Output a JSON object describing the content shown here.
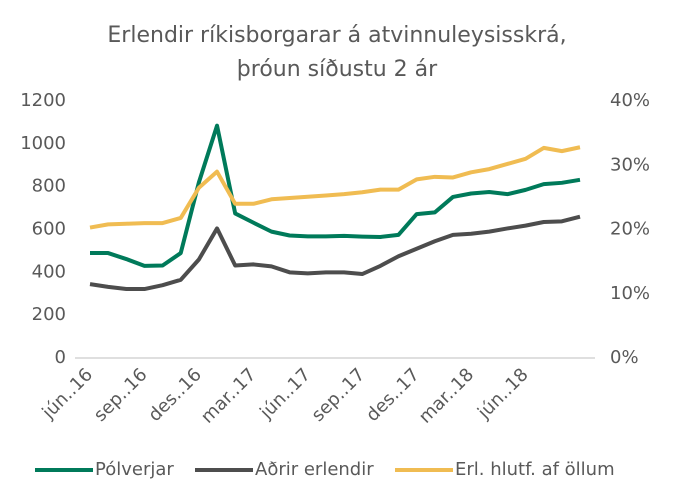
{
  "chart_data": {
    "type": "line",
    "title": [
      "Erlendir ríkisborgarar á atvinnuleysisskrá,",
      "þróun síðustu 2 ár"
    ],
    "categories": [
      "jún..16",
      null,
      null,
      "sep..16",
      null,
      null,
      "des..16",
      null,
      null,
      "mar..17",
      null,
      null,
      "jún..17",
      null,
      null,
      "sep..17",
      null,
      null,
      "des..17",
      null,
      null,
      "mar..18",
      null,
      null,
      "jún..18",
      null,
      null,
      null
    ],
    "series": [
      {
        "name": "Pólverjar",
        "color": "#007a5a",
        "values": [
          490,
          490,
          462,
          430,
          432,
          490,
          820,
          1085,
          675,
          632,
          590,
          572,
          568,
          568,
          570,
          567,
          565,
          575,
          672,
          680,
          752,
          768,
          775,
          765,
          785,
          812,
          818,
          832
        ]
      },
      {
        "name": "Aðrir erlendir",
        "color": "#4d4d4d",
        "values": [
          345,
          332,
          322,
          322,
          340,
          365,
          460,
          605,
          432,
          437,
          428,
          400,
          395,
          400,
          400,
          392,
          430,
          475,
          510,
          545,
          575,
          580,
          590,
          605,
          618,
          635,
          638,
          660
        ]
      },
      {
        "name": "Erl. hlutf. af öllum",
        "color": "#f0bc52",
        "axis": "y2",
        "values": [
          20.3,
          20.8,
          20.9,
          21,
          21,
          21.8,
          26.5,
          29,
          24,
          24,
          24.7,
          24.9,
          25.1,
          25.3,
          25.5,
          25.8,
          26.2,
          26.2,
          27.8,
          28.2,
          28.1,
          28.9,
          29.4,
          30.2,
          31,
          32.7,
          32.2,
          32.8
        ]
      }
    ],
    "ylim": [
      0,
      1200
    ],
    "yticks": [
      0,
      200,
      400,
      600,
      800,
      1000,
      1200
    ],
    "y2lim": [
      0,
      40
    ],
    "y2ticks": [
      {
        "value": 0,
        "label": "0%"
      },
      {
        "value": 10,
        "label": "10%"
      },
      {
        "value": 20,
        "label": "20%"
      },
      {
        "value": 30,
        "label": "30%"
      },
      {
        "value": 40,
        "label": "40%"
      }
    ],
    "legend": "bottom"
  }
}
